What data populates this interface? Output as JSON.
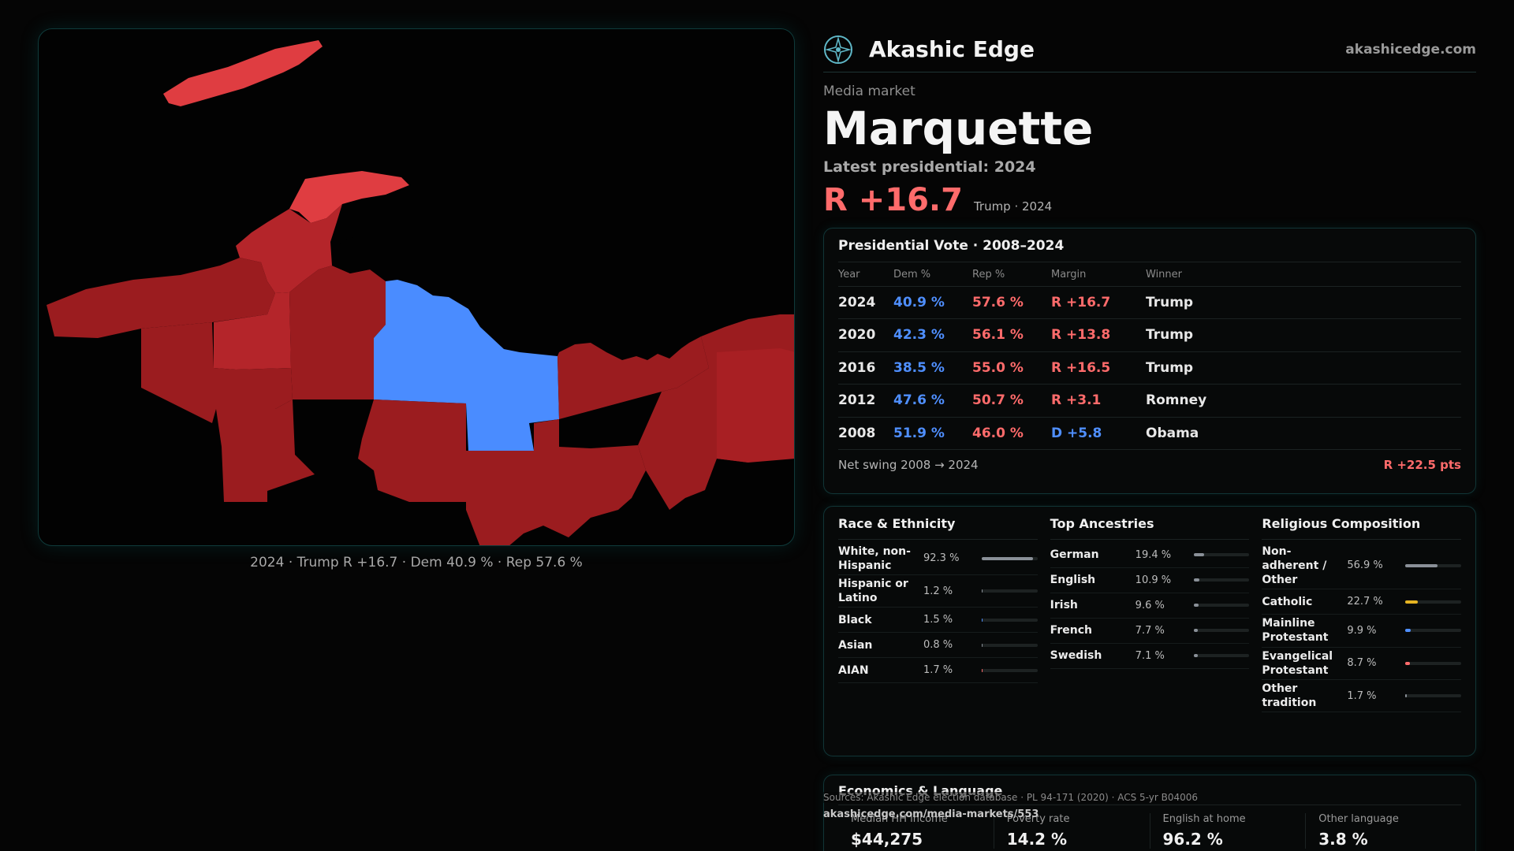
{
  "brand": {
    "name": "Akashic Edge",
    "site": "akashicedge.com",
    "logo_icon": "compass-star-icon"
  },
  "market": {
    "eyebrow": "Media market",
    "name": "Marquette",
    "latest_label": "Latest presidential: 2024",
    "headline_margin": "R +16.7",
    "headline_sub": "Trump · 2024"
  },
  "map": {
    "caption": "2024 · Trump R +16.7 · Dem 40.9 % · Rep 57.6 %",
    "colors": {
      "dark_red": "#9b1c1f",
      "mid_red": "#b4252a",
      "light_red": "#df3d41",
      "blue": "#4a8cff"
    }
  },
  "vote": {
    "title": "Presidential Vote · 2008–2024",
    "columns": [
      "Year",
      "Dem %",
      "Rep %",
      "Margin",
      "Winner"
    ],
    "rows": [
      {
        "year": "2024",
        "dem": "40.9 %",
        "rep": "57.6 %",
        "margin": "R +16.7",
        "winner": "Trump"
      },
      {
        "year": "2020",
        "dem": "42.3 %",
        "rep": "56.1 %",
        "margin": "R +13.8",
        "winner": "Trump"
      },
      {
        "year": "2016",
        "dem": "38.5 %",
        "rep": "55.0 %",
        "margin": "R +16.5",
        "winner": "Trump"
      },
      {
        "year": "2012",
        "dem": "47.6 %",
        "rep": "50.7 %",
        "margin": "R +3.1",
        "winner": "Romney"
      },
      {
        "year": "2008",
        "dem": "51.9 %",
        "rep": "46.0 %",
        "margin": "D +5.8",
        "winner": "Obama"
      }
    ],
    "swing_label": "Net swing 2008 → 2024",
    "swing_value": "R +22.5 pts"
  },
  "race": {
    "title": "Race & Ethnicity",
    "items": [
      {
        "label": "White, non-Hispanic",
        "value": "92.3 %",
        "pct": 92.3,
        "color": "#8a9098"
      },
      {
        "label": "Hispanic or Latino",
        "value": "1.2 %",
        "pct": 1.2,
        "color": "#8a9098"
      },
      {
        "label": "Black",
        "value": "1.5 %",
        "pct": 1.5,
        "color": "#4f8fff"
      },
      {
        "label": "Asian",
        "value": "0.8 %",
        "pct": 0.8,
        "color": "#8a9098"
      },
      {
        "label": "AIAN",
        "value": "1.7 %",
        "pct": 1.7,
        "color": "#ff6b6b"
      }
    ]
  },
  "ancestry": {
    "title": "Top Ancestries",
    "items": [
      {
        "label": "German",
        "value": "19.4 %",
        "pct": 19.4,
        "color": "#8a9098"
      },
      {
        "label": "English",
        "value": "10.9 %",
        "pct": 10.9,
        "color": "#8a9098"
      },
      {
        "label": "Irish",
        "value": "9.6 %",
        "pct": 9.6,
        "color": "#8a9098"
      },
      {
        "label": "French",
        "value": "7.7 %",
        "pct": 7.7,
        "color": "#8a9098"
      },
      {
        "label": "Swedish",
        "value": "7.1 %",
        "pct": 7.1,
        "color": "#8a9098"
      }
    ]
  },
  "religion": {
    "title": "Religious Composition",
    "items": [
      {
        "label": "Non-adherent / Other",
        "value": "56.9 %",
        "pct": 56.9,
        "color": "#8a9098"
      },
      {
        "label": "Catholic",
        "value": "22.7 %",
        "pct": 22.7,
        "color": "#e6b422"
      },
      {
        "label": "Mainline Protestant",
        "value": "9.9 %",
        "pct": 9.9,
        "color": "#4f8fff"
      },
      {
        "label": "Evangelical Protestant",
        "value": "8.7 %",
        "pct": 8.7,
        "color": "#ff6b6b"
      },
      {
        "label": "Other tradition",
        "value": "1.7 %",
        "pct": 1.7,
        "color": "#8a9098"
      }
    ]
  },
  "economics": {
    "title": "Economics & Language",
    "items": [
      {
        "label": "Median HH income",
        "value": "$44,275"
      },
      {
        "label": "Poverty rate",
        "value": "14.2 %"
      },
      {
        "label": "English at home",
        "value": "96.2 %"
      },
      {
        "label": "Other language",
        "value": "3.8 %"
      }
    ]
  },
  "footer": {
    "sources": "Sources: Akashic Edge election database · PL 94-171 (2020) · ACS 5-yr B04006",
    "url": "akashicedge.com/media-markets/553"
  }
}
